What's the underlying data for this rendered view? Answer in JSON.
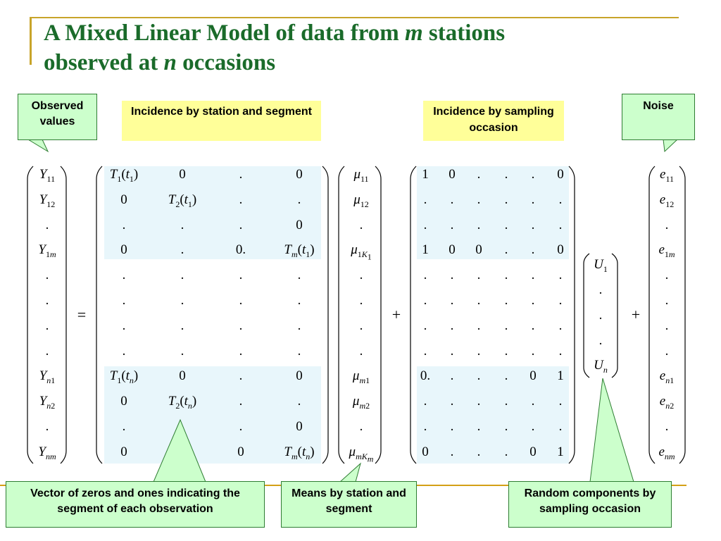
{
  "title": {
    "part1": "A Mixed Linear Model of  data from ",
    "m": "m",
    "part2": " stations",
    "part3": "observed at ",
    "n": "n",
    "part4": " occasions"
  },
  "callouts": {
    "observed": "Observed values",
    "noise": "Noise",
    "vector": "Vector of zeros and ones indicating the segment of each observation",
    "means": "Means by station and segment",
    "random": "Random components by sampling occasion"
  },
  "labels": {
    "incidence_station": "Incidence by station and segment",
    "incidence_sampling": "Incidence by sampling occasion"
  },
  "operators": {
    "equals": "=",
    "plus1": "+",
    "plus2": "+"
  }
}
